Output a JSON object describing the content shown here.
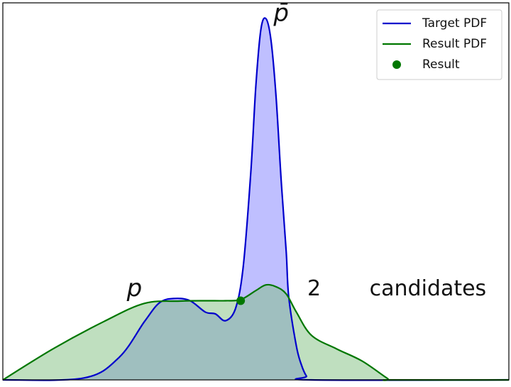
{
  "chart_data": {
    "type": "area",
    "title": "",
    "xlabel": "",
    "ylabel": "",
    "xlim": [
      0,
      1
    ],
    "ylim": [
      0,
      1
    ],
    "grid": false,
    "legend": {
      "placement": "top-right",
      "entries": [
        {
          "label": "Target PDF",
          "kind": "line",
          "color": "#0000cc"
        },
        {
          "label": "Result PDF",
          "kind": "line",
          "color": "#007700"
        },
        {
          "label": "Result",
          "kind": "marker",
          "color": "#007700"
        }
      ]
    },
    "series": [
      {
        "name": "Target PDF",
        "color": "#0000cc",
        "fill": "#8080ff",
        "x": [
          0.0,
          0.16,
          0.23,
          0.28,
          0.31,
          0.34,
          0.37,
          0.4,
          0.42,
          0.44,
          0.46,
          0.475,
          0.49,
          0.5,
          0.51,
          0.52,
          0.53,
          0.54,
          0.55,
          0.56,
          0.565,
          0.58,
          0.59,
          0.6,
          0.61,
          1.0
        ],
        "y": [
          0.0,
          0.005,
          0.06,
          0.155,
          0.205,
          0.216,
          0.21,
          0.18,
          0.175,
          0.157,
          0.19,
          0.3,
          0.55,
          0.78,
          0.93,
          0.958,
          0.9,
          0.75,
          0.53,
          0.34,
          0.22,
          0.09,
          0.04,
          0.01,
          0.0,
          0.0
        ]
      },
      {
        "name": "Result PDF",
        "color": "#007700",
        "fill": "#80c080",
        "x": [
          0.0,
          0.1,
          0.2,
          0.28,
          0.35,
          0.4,
          0.44,
          0.47,
          0.5,
          0.52,
          0.54,
          0.56,
          0.58,
          0.61,
          0.66,
          0.71,
          0.76,
          0.77,
          1.0
        ],
        "y": [
          0.0,
          0.083,
          0.155,
          0.203,
          0.209,
          0.21,
          0.21,
          0.213,
          0.237,
          0.252,
          0.247,
          0.228,
          0.18,
          0.118,
          0.082,
          0.05,
          0.004,
          0.0,
          0.0
        ]
      }
    ],
    "points": [
      {
        "series": "Result",
        "x": 0.47,
        "y": 0.21,
        "color": "#007700"
      }
    ],
    "annotations": [
      {
        "id": "pbar",
        "text": "p̄",
        "x": 0.55,
        "y": 0.97
      },
      {
        "id": "p",
        "text": "p",
        "x": 0.26,
        "y": 0.24
      },
      {
        "id": "count",
        "text": "2",
        "x": 0.615,
        "y": 0.24
      },
      {
        "id": "candidates",
        "text": "candidates",
        "x": 0.84,
        "y": 0.24
      }
    ]
  }
}
